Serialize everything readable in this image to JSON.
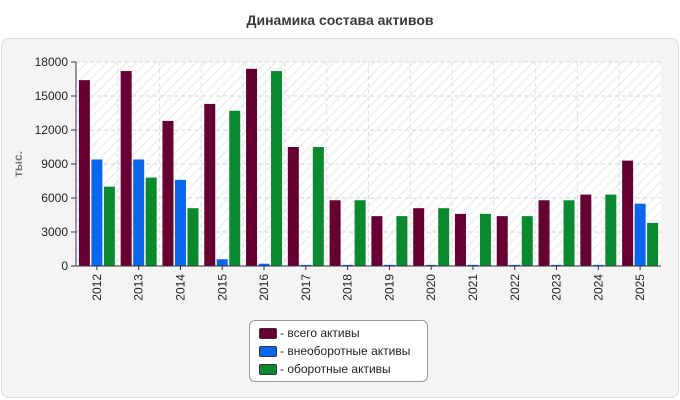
{
  "title": "Динамика состава активов",
  "chart_data": {
    "type": "bar",
    "title": "Динамика состава активов",
    "ylabel": "тыс.",
    "xlabel": "",
    "ylim": [
      0,
      18000
    ],
    "yticks": [
      0,
      3000,
      6000,
      9000,
      12000,
      15000,
      18000
    ],
    "grid": true,
    "legend_position": "bottom-center",
    "categories": [
      "2012",
      "2013",
      "2014",
      "2015",
      "2016",
      "2017",
      "2018",
      "2019",
      "2020",
      "2021",
      "2022",
      "2023",
      "2024",
      "2025"
    ],
    "series": [
      {
        "name": "- всего активы",
        "color": "#660033",
        "values": [
          16400,
          17200,
          12800,
          14300,
          17400,
          10500,
          5800,
          4400,
          5100,
          4600,
          4400,
          5800,
          6300,
          9300
        ]
      },
      {
        "name": "- внеоборотные активы",
        "color": "#0b66ee",
        "values": [
          9400,
          9400,
          7600,
          600,
          200,
          100,
          100,
          100,
          100,
          100,
          100,
          100,
          100,
          5500
        ]
      },
      {
        "name": "- оборотные активы",
        "color": "#0a8a2e",
        "values": [
          7000,
          7800,
          5100,
          13700,
          17200,
          10500,
          5800,
          4400,
          5100,
          4600,
          4400,
          5800,
          6300,
          3800
        ]
      }
    ]
  }
}
